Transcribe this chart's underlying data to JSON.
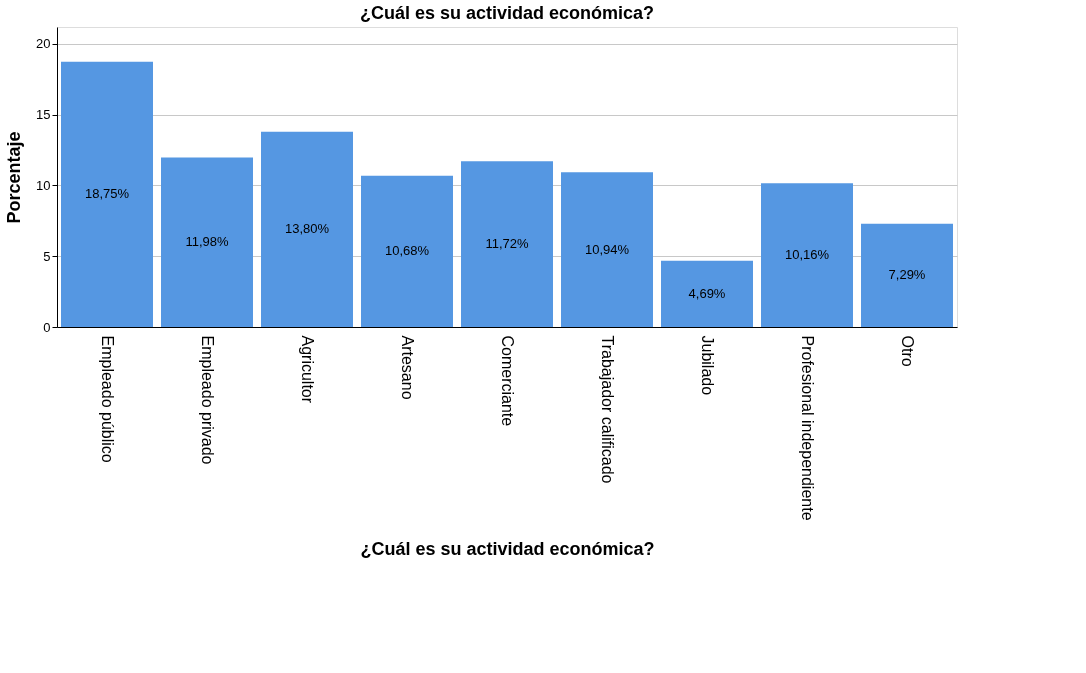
{
  "chart_data": {
    "type": "bar",
    "title": "¿Cuál es su actividad económica?",
    "xlabel": "¿Cuál es su actividad económica?",
    "ylabel": "Porcentaje",
    "categories": [
      "Empleado público",
      "Empleado privado",
      "Agricultor",
      "Artesano",
      "Comerciante",
      "Trabajador calificado",
      "Jubilado",
      "Profesional independiente",
      "Otro"
    ],
    "values": [
      18.75,
      11.98,
      13.8,
      10.68,
      11.72,
      10.94,
      4.69,
      10.16,
      7.29
    ],
    "value_labels": [
      "18,75%",
      "11,98%",
      "13,80%",
      "10,68%",
      "11,72%",
      "10,94%",
      "4,69%",
      "10,16%",
      "7,29%"
    ],
    "color": "#5597e2",
    "ylim": [
      0,
      21.2
    ],
    "yticks": [
      0,
      5,
      10,
      15,
      20
    ],
    "grid": "y"
  }
}
